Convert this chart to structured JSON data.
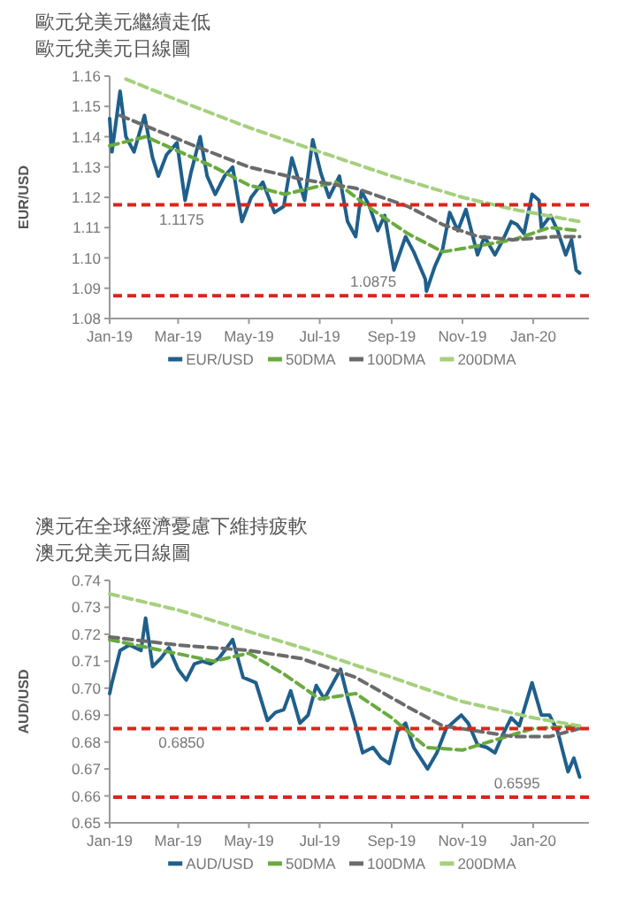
{
  "chart_data": [
    {
      "type": "line",
      "title": "歐元兌美元繼續走低",
      "subtitle": "歐元兌美元日線圖",
      "ylabel": "EUR/USD",
      "xlim": [
        "2019-01-01",
        "2020-02-18"
      ],
      "ylim": [
        1.08,
        1.16
      ],
      "yticks": [
        1.08,
        1.09,
        {
          "value": 1.1,
          "label": "1.10"
        },
        1.11,
        1.12,
        1.13,
        1.14,
        1.15,
        1.16
      ],
      "xticks": [
        {
          "value": "2019-01-01",
          "label": "Jan-19"
        },
        {
          "value": "2019-03-01",
          "label": "Mar-19"
        },
        {
          "value": "2019-05-01",
          "label": "May-19"
        },
        {
          "value": "2019-07-01",
          "label": "Jul-19"
        },
        {
          "value": "2019-09-01",
          "label": "Sep-19"
        },
        {
          "value": "2019-11-01",
          "label": "Nov-19"
        },
        {
          "value": "2020-01-01",
          "label": "Jan-20"
        }
      ],
      "grid": false,
      "legend": "bottom",
      "ref_lines": [
        {
          "axis": "y",
          "value": 1.1175,
          "label": "1.1175",
          "color": "#d9261c",
          "line_style": "dashed"
        },
        {
          "axis": "y",
          "value": 1.0875,
          "label": "1.0875",
          "color": "#d9261c",
          "line_style": "dashed"
        }
      ],
      "series": [
        {
          "name": "EUR/USD",
          "color": "#1f5f8b",
          "line_style": "solid",
          "x": [
            "2019-01-01",
            "2019-01-03",
            "2019-01-10",
            "2019-01-15",
            "2019-01-22",
            "2019-01-31",
            "2019-02-07",
            "2019-02-12",
            "2019-02-19",
            "2019-02-28",
            "2019-03-07",
            "2019-03-12",
            "2019-03-20",
            "2019-03-26",
            "2019-04-02",
            "2019-04-10",
            "2019-04-17",
            "2019-04-25",
            "2019-05-03",
            "2019-05-13",
            "2019-05-23",
            "2019-05-31",
            "2019-06-07",
            "2019-06-18",
            "2019-06-25",
            "2019-07-02",
            "2019-07-09",
            "2019-07-18",
            "2019-07-25",
            "2019-08-01",
            "2019-08-06",
            "2019-08-13",
            "2019-08-20",
            "2019-08-26",
            "2019-09-03",
            "2019-09-13",
            "2019-09-20",
            "2019-09-30",
            "2019-10-01",
            "2019-10-08",
            "2019-10-15",
            "2019-10-21",
            "2019-10-28",
            "2019-11-04",
            "2019-11-14",
            "2019-11-20",
            "2019-11-29",
            "2019-12-06",
            "2019-12-13",
            "2019-12-18",
            "2019-12-24",
            "2019-12-31",
            "2020-01-06",
            "2020-01-08",
            "2020-01-16",
            "2020-01-22",
            "2020-01-29",
            "2020-02-03",
            "2020-02-07",
            "2020-02-10"
          ],
          "values": [
            1.146,
            1.135,
            1.155,
            1.14,
            1.135,
            1.147,
            1.133,
            1.127,
            1.134,
            1.138,
            1.119,
            1.128,
            1.14,
            1.127,
            1.121,
            1.127,
            1.13,
            1.112,
            1.12,
            1.125,
            1.115,
            1.117,
            1.133,
            1.119,
            1.139,
            1.128,
            1.12,
            1.127,
            1.112,
            1.107,
            1.122,
            1.117,
            1.109,
            1.114,
            1.096,
            1.107,
            1.102,
            1.093,
            1.089,
            1.097,
            1.103,
            1.115,
            1.109,
            1.116,
            1.101,
            1.107,
            1.101,
            1.106,
            1.112,
            1.111,
            1.108,
            1.121,
            1.119,
            1.11,
            1.114,
            1.109,
            1.101,
            1.106,
            1.096,
            1.095
          ]
        },
        {
          "name": "50DMA",
          "color": "#6aab3f",
          "line_style": "dashed",
          "x": [
            "2019-01-01",
            "2019-02-01",
            "2019-04-01",
            "2019-05-01",
            "2019-06-01",
            "2019-07-15",
            "2019-08-15",
            "2019-09-15",
            "2019-10-15",
            "2019-11-15",
            "2019-12-15",
            "2020-01-15",
            "2020-02-10"
          ],
          "values": [
            1.137,
            1.14,
            1.13,
            1.124,
            1.121,
            1.125,
            1.116,
            1.108,
            1.102,
            1.104,
            1.106,
            1.11,
            1.109
          ]
        },
        {
          "name": "100DMA",
          "color": "#6b6b6b",
          "line_style": "dashed",
          "x": [
            "2019-01-10",
            "2019-03-15",
            "2019-05-01",
            "2019-06-15",
            "2019-08-01",
            "2019-09-15",
            "2019-10-15",
            "2019-11-15",
            "2019-12-15",
            "2020-01-20",
            "2020-02-10"
          ],
          "values": [
            1.147,
            1.137,
            1.13,
            1.126,
            1.123,
            1.117,
            1.111,
            1.107,
            1.106,
            1.107,
            1.107
          ]
        },
        {
          "name": "200DMA",
          "color": "#a5d07d",
          "line_style": "dashed",
          "x": [
            "2019-01-15",
            "2019-03-01",
            "2019-05-01",
            "2019-07-01",
            "2019-09-01",
            "2019-11-01",
            "2019-12-15",
            "2020-02-10"
          ],
          "values": [
            1.159,
            1.152,
            1.143,
            1.135,
            1.127,
            1.12,
            1.116,
            1.112
          ]
        }
      ]
    },
    {
      "type": "line",
      "title": "澳元在全球經濟憂慮下維持疲軟",
      "subtitle": "澳元兌美元日線圖",
      "ylabel": "AUD/USD",
      "xlim": [
        "2019-01-01",
        "2020-02-18"
      ],
      "ylim": [
        0.65,
        0.74
      ],
      "yticks": [
        0.65,
        0.66,
        0.67,
        0.68,
        0.69,
        {
          "value": 0.7,
          "label": "0.70"
        },
        0.71,
        0.72,
        0.73,
        0.74
      ],
      "xticks": [
        {
          "value": "2019-01-01",
          "label": "Jan-19"
        },
        {
          "value": "2019-03-01",
          "label": "Mar-19"
        },
        {
          "value": "2019-05-01",
          "label": "May-19"
        },
        {
          "value": "2019-07-01",
          "label": "Jul-19"
        },
        {
          "value": "2019-09-01",
          "label": "Sep-19"
        },
        {
          "value": "2019-11-01",
          "label": "Nov-19"
        },
        {
          "value": "2020-01-01",
          "label": "Jan-20"
        }
      ],
      "grid": false,
      "legend": "bottom",
      "ref_lines": [
        {
          "axis": "y",
          "value": 0.685,
          "label": "0.6850",
          "color": "#d9261c",
          "line_style": "dashed"
        },
        {
          "axis": "y",
          "value": 0.6595,
          "label": "0.6595",
          "color": "#d9261c",
          "line_style": "dashed"
        }
      ],
      "series": [
        {
          "name": "AUD/USD",
          "color": "#1f5f8b",
          "line_style": "solid",
          "x": [
            "2019-01-01",
            "2019-01-03",
            "2019-01-10",
            "2019-01-18",
            "2019-01-28",
            "2019-02-01",
            "2019-02-07",
            "2019-02-14",
            "2019-02-21",
            "2019-03-01",
            "2019-03-08",
            "2019-03-15",
            "2019-03-22",
            "2019-03-29",
            "2019-04-05",
            "2019-04-17",
            "2019-04-26",
            "2019-05-07",
            "2019-05-17",
            "2019-05-24",
            "2019-05-31",
            "2019-06-06",
            "2019-06-14",
            "2019-06-21",
            "2019-06-28",
            "2019-07-05",
            "2019-07-19",
            "2019-07-26",
            "2019-08-01",
            "2019-08-07",
            "2019-08-16",
            "2019-08-23",
            "2019-08-30",
            "2019-09-06",
            "2019-09-13",
            "2019-09-20",
            "2019-10-02",
            "2019-10-10",
            "2019-10-18",
            "2019-10-31",
            "2019-11-06",
            "2019-11-14",
            "2019-11-22",
            "2019-11-29",
            "2019-12-06",
            "2019-12-13",
            "2019-12-20",
            "2019-12-31",
            "2020-01-08",
            "2020-01-15",
            "2020-01-22",
            "2020-01-31",
            "2020-02-05",
            "2020-02-10"
          ],
          "values": [
            0.698,
            0.702,
            0.714,
            0.716,
            0.714,
            0.726,
            0.708,
            0.711,
            0.715,
            0.707,
            0.703,
            0.709,
            0.71,
            0.709,
            0.711,
            0.718,
            0.704,
            0.702,
            0.688,
            0.691,
            0.692,
            0.699,
            0.687,
            0.69,
            0.701,
            0.696,
            0.707,
            0.695,
            0.686,
            0.676,
            0.678,
            0.674,
            0.672,
            0.684,
            0.687,
            0.678,
            0.67,
            0.676,
            0.685,
            0.69,
            0.687,
            0.679,
            0.678,
            0.676,
            0.683,
            0.689,
            0.686,
            0.702,
            0.69,
            0.69,
            0.684,
            0.669,
            0.674,
            0.667
          ]
        },
        {
          "name": "50DMA",
          "color": "#6aab3f",
          "line_style": "dashed",
          "x": [
            "2019-01-01",
            "2019-02-15",
            "2019-04-01",
            "2019-05-01",
            "2019-06-01",
            "2019-07-01",
            "2019-08-01",
            "2019-09-01",
            "2019-10-01",
            "2019-11-01",
            "2019-12-01",
            "2020-01-01",
            "2020-02-10"
          ],
          "values": [
            0.718,
            0.714,
            0.71,
            0.713,
            0.705,
            0.696,
            0.698,
            0.689,
            0.678,
            0.677,
            0.681,
            0.685,
            0.686
          ]
        },
        {
          "name": "100DMA",
          "color": "#6b6b6b",
          "line_style": "dashed",
          "x": [
            "2019-01-01",
            "2019-03-01",
            "2019-05-01",
            "2019-06-15",
            "2019-08-01",
            "2019-09-15",
            "2019-10-15",
            "2019-11-15",
            "2019-12-15",
            "2020-01-15",
            "2020-02-10"
          ],
          "values": [
            0.719,
            0.716,
            0.714,
            0.711,
            0.704,
            0.693,
            0.686,
            0.684,
            0.682,
            0.682,
            0.685
          ]
        },
        {
          "name": "200DMA",
          "color": "#a5d07d",
          "line_style": "dashed",
          "x": [
            "2019-01-01",
            "2019-03-01",
            "2019-05-01",
            "2019-07-01",
            "2019-09-01",
            "2019-11-01",
            "2020-01-01",
            "2020-02-10"
          ],
          "values": [
            0.735,
            0.729,
            0.721,
            0.713,
            0.704,
            0.695,
            0.689,
            0.686
          ]
        }
      ]
    }
  ]
}
